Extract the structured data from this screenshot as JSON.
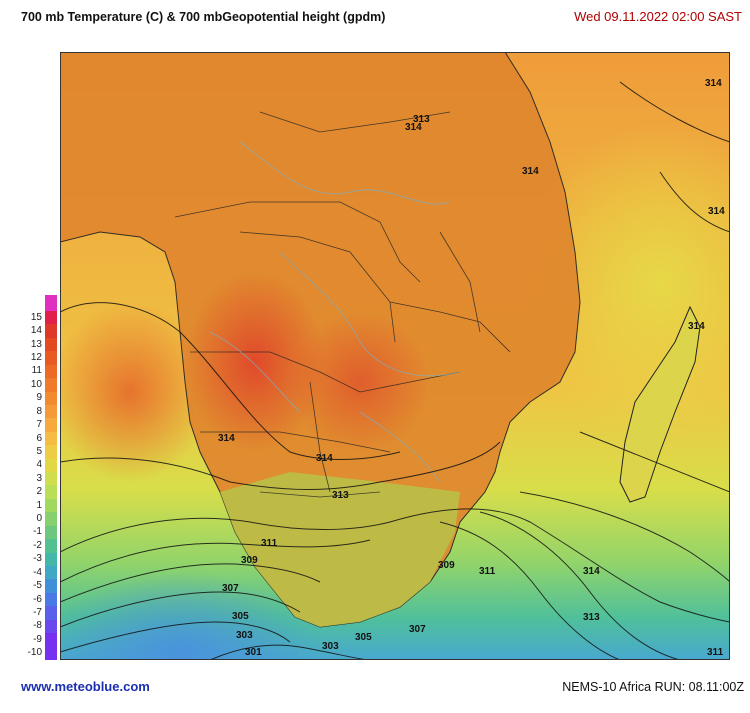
{
  "header": {
    "title": "700 mb Temperature (C)  & 700 mbGeopotential height (gpdm)",
    "datetime": "Wed 09.11.2022  02:00 SAST"
  },
  "legend": {
    "labels": [
      "15",
      "14",
      "13",
      "12",
      "11",
      "10",
      "9",
      "8",
      "7",
      "6",
      "5",
      "4",
      "3",
      "2",
      "1",
      "0",
      "-1",
      "-2",
      "-3",
      "-4",
      "-5",
      "-6",
      "-7",
      "-8",
      "-9",
      "-10"
    ],
    "colors": [
      "#e030c0",
      "#e0204a",
      "#e03828",
      "#e44a20",
      "#e85a22",
      "#ec6a26",
      "#f07a2a",
      "#f28a30",
      "#f49a36",
      "#f6aa3c",
      "#f4bc40",
      "#eecc44",
      "#e2d846",
      "#cede4c",
      "#bade56",
      "#a0d860",
      "#86d070",
      "#6cc87e",
      "#52c090",
      "#44b8a8",
      "#40a8c4",
      "#4090d8",
      "#4a78e4",
      "#5a60ea",
      "#6a48ee",
      "#7830f0"
    ]
  },
  "map": {
    "contour_labels": [
      "314",
      "313",
      "314",
      "314",
      "314",
      "314",
      "314",
      "314",
      "313",
      "311",
      "309",
      "309",
      "311",
      "314",
      "307",
      "305",
      "303",
      "305",
      "307",
      "313",
      "301",
      "303",
      "311"
    ]
  },
  "footer": {
    "site": "www.meteoblue.com",
    "model_run": "NEMS-10 Africa   RUN: 08.11:00Z"
  }
}
